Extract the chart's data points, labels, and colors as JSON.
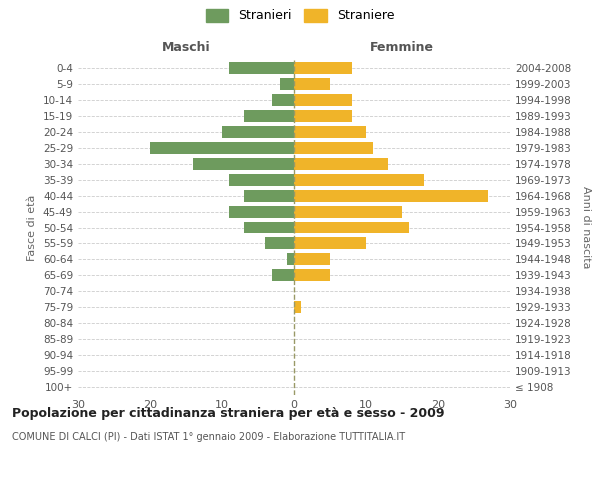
{
  "age_groups": [
    "100+",
    "95-99",
    "90-94",
    "85-89",
    "80-84",
    "75-79",
    "70-74",
    "65-69",
    "60-64",
    "55-59",
    "50-54",
    "45-49",
    "40-44",
    "35-39",
    "30-34",
    "25-29",
    "20-24",
    "15-19",
    "10-14",
    "5-9",
    "0-4"
  ],
  "birth_years": [
    "≤ 1908",
    "1909-1913",
    "1914-1918",
    "1919-1923",
    "1924-1928",
    "1929-1933",
    "1934-1938",
    "1939-1943",
    "1944-1948",
    "1949-1953",
    "1954-1958",
    "1959-1963",
    "1964-1968",
    "1969-1973",
    "1974-1978",
    "1979-1983",
    "1984-1988",
    "1989-1993",
    "1994-1998",
    "1999-2003",
    "2004-2008"
  ],
  "males": [
    0,
    0,
    0,
    0,
    0,
    0,
    0,
    3,
    1,
    4,
    7,
    9,
    7,
    9,
    14,
    20,
    10,
    7,
    3,
    2,
    9
  ],
  "females": [
    0,
    0,
    0,
    0,
    0,
    1,
    0,
    5,
    5,
    10,
    16,
    15,
    27,
    18,
    13,
    11,
    10,
    8,
    8,
    5,
    8
  ],
  "male_color": "#6e9b5e",
  "female_color": "#f0b429",
  "title": "Popolazione per cittadinanza straniera per età e sesso - 2009",
  "subtitle": "COMUNE DI CALCI (PI) - Dati ISTAT 1° gennaio 2009 - Elaborazione TUTTITALIA.IT",
  "xlim": 30,
  "xlabel_left": "Maschi",
  "xlabel_right": "Femmine",
  "ylabel_left": "Fasce di età",
  "ylabel_right": "Anni di nascita",
  "legend_labels": [
    "Stranieri",
    "Straniere"
  ],
  "background_color": "#ffffff",
  "grid_color": "#cccccc",
  "center_line_color": "#999966"
}
